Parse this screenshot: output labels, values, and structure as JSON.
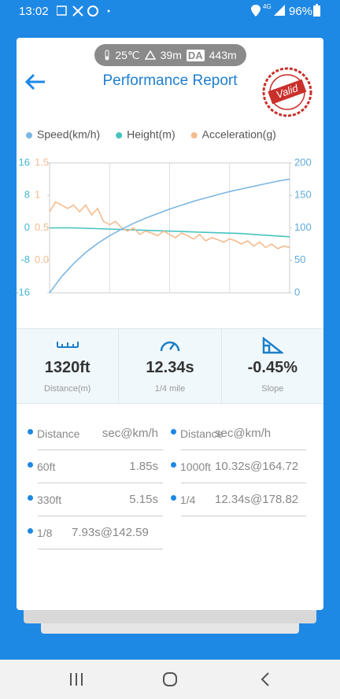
{
  "status_bar": {
    "time": "13:02",
    "network": "4G",
    "battery": "96%"
  },
  "conditions": {
    "temperature": "25℃",
    "altitude": "39m",
    "density_altitude_tag": "DA",
    "density_altitude": "443m"
  },
  "header": {
    "title": "Performance Report",
    "stamp": "Valid"
  },
  "chart_data": {
    "type": "line",
    "series": [
      {
        "name": "Speed(km/h)",
        "color": "#7db7e3",
        "axis": "y2",
        "values": [
          0,
          25,
          45,
          62,
          76,
          88,
          98,
          107,
          115,
          122,
          129,
          135,
          141,
          146,
          151,
          156,
          160,
          164,
          168,
          172,
          175
        ]
      },
      {
        "name": "Height(m)",
        "color": "#45c4c0",
        "axis": "y",
        "values": [
          0,
          0,
          0,
          -0.1,
          -0.2,
          -0.3,
          -0.4,
          -0.5,
          -0.6,
          -0.7,
          -0.8,
          -0.9,
          -1.0,
          -1.1,
          -1.2,
          -1.3,
          -1.4,
          -1.6,
          -1.8,
          -2.0,
          -2.2
        ]
      },
      {
        "name": "Acceleration(g)",
        "color": "#f4bb8e",
        "axis": "y3",
        "values": [
          0.75,
          0.9,
          0.85,
          0.8,
          0.85,
          0.75,
          0.85,
          0.7,
          0.8,
          0.6,
          0.55,
          0.6,
          0.5,
          0.45,
          0.5,
          0.4,
          0.45,
          0.42,
          0.38,
          0.45,
          0.4,
          0.35,
          0.42,
          0.38,
          0.33,
          0.4,
          0.3,
          0.35,
          0.32,
          0.28,
          0.33,
          0.3,
          0.25,
          0.3,
          0.22,
          0.28,
          0.2,
          0.25,
          0.18,
          0.22,
          0.2
        ]
      }
    ],
    "ylim": [
      -16,
      16
    ],
    "yticks": [
      16,
      8,
      0,
      -8,
      -16
    ],
    "ytick_color": "#45b8d0",
    "y3lim": [
      -0.5,
      1.5
    ],
    "y3ticks": [
      1.5,
      1,
      0.5,
      {
        "value": 0,
        "label": "0.0"
      }
    ],
    "y3tick_color": "#f4bb8e",
    "y2lim": [
      0,
      200
    ],
    "y2ticks": [
      200,
      150,
      100,
      50,
      0
    ],
    "y2tick_color": "#5fa9d8",
    "legend": "top"
  },
  "stats": [
    {
      "value": "1320ft",
      "label": "Distance(m)"
    },
    {
      "value": "12.34s",
      "label": "1/4 mile"
    },
    {
      "value": "-0.45%",
      "label": "Slope"
    }
  ],
  "table": {
    "columns": [
      {
        "header": [
          "Distance",
          "sec@km/h"
        ],
        "rows": [
          [
            "60ft",
            "1.85s"
          ],
          [
            "330ft",
            "5.15s"
          ],
          [
            "1/8",
            "7.93s@142.59"
          ]
        ]
      },
      {
        "header": [
          "Distance",
          "sec@km/h"
        ],
        "rows": [
          [
            "1000ft",
            "10.32s@164.72"
          ],
          [
            "1/4",
            "12.34s@178.82"
          ]
        ]
      }
    ]
  }
}
